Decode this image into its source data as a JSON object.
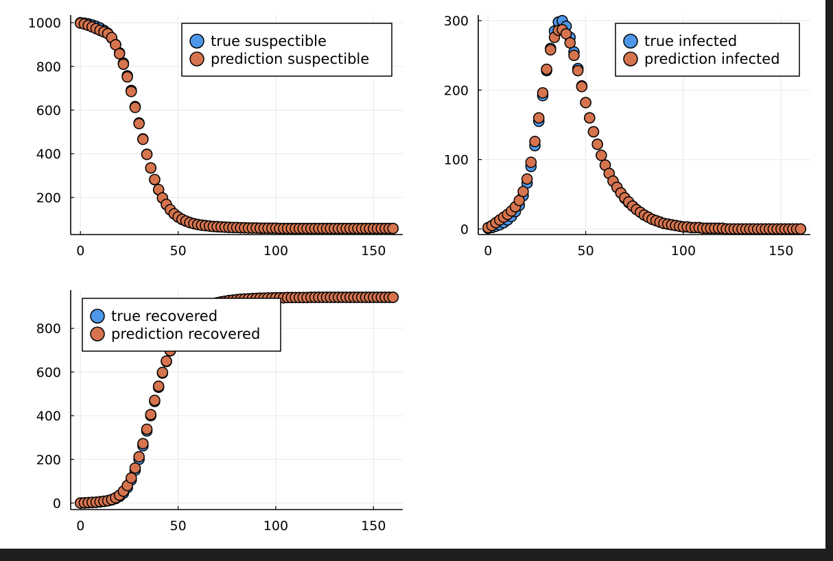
{
  "figure": {
    "background": "#ffffff",
    "frame": "#1e1e1e"
  },
  "colors": {
    "true": "#4e97e8",
    "prediction": "#d5744e",
    "marker_edge": "#000000",
    "grid": "#e8e8e8",
    "axis": "#000000"
  },
  "chart_data": [
    {
      "type": "scatter",
      "subplot": "susceptible",
      "title": "",
      "xlabel": "",
      "ylabel": "",
      "xlim": [
        -5,
        165
      ],
      "ylim": [
        30,
        1035
      ],
      "xticks": [
        0,
        50,
        100,
        150
      ],
      "yticks": [
        200,
        400,
        600,
        800,
        1000
      ],
      "grid": true,
      "legend_position": "top-right",
      "x": [
        0,
        2,
        4,
        6,
        8,
        10,
        12,
        14,
        16,
        18,
        20,
        22,
        24,
        26,
        28,
        30,
        32,
        34,
        36,
        38,
        40,
        42,
        44,
        46,
        48,
        50,
        52,
        54,
        56,
        58,
        60,
        62,
        64,
        66,
        68,
        70,
        72,
        74,
        76,
        78,
        80,
        82,
        84,
        86,
        88,
        90,
        92,
        94,
        96,
        98,
        100,
        102,
        104,
        106,
        108,
        110,
        112,
        114,
        116,
        118,
        120,
        122,
        124,
        126,
        128,
        130,
        132,
        134,
        136,
        138,
        140,
        142,
        144,
        146,
        148,
        150,
        152,
        154,
        156,
        158,
        160
      ],
      "series": [
        {
          "name": "true suspectible",
          "role": "true",
          "values": [
            1000,
            998,
            995,
            990,
            984,
            976,
            965,
            952,
            930,
            900,
            862,
            815,
            757,
            690,
            616,
            541,
            468,
            398,
            335,
            281,
            235,
            197,
            167,
            143,
            124,
            110,
            99,
            91,
            85,
            80,
            76,
            73,
            71,
            69,
            67,
            66,
            65,
            64,
            63,
            62,
            62,
            61,
            61,
            60,
            60,
            60,
            59,
            59,
            59,
            59,
            59,
            58,
            58,
            58,
            58,
            58,
            58,
            58,
            58,
            58,
            58,
            58,
            58,
            58,
            58,
            58,
            58,
            58,
            58,
            58,
            58,
            58,
            58,
            58,
            58,
            58,
            58,
            58,
            58,
            58,
            58
          ]
        },
        {
          "name": "prediction suspectible",
          "role": "prediction",
          "values": [
            998,
            994,
            988,
            981,
            973,
            965,
            958,
            950,
            932,
            899,
            858,
            810,
            752,
            685,
            612,
            538,
            466,
            397,
            335,
            282,
            236,
            198,
            168,
            144,
            125,
            111,
            100,
            92,
            85,
            80,
            76,
            73,
            71,
            69,
            67,
            66,
            65,
            64,
            63,
            62,
            62,
            61,
            61,
            60,
            60,
            60,
            59,
            59,
            59,
            59,
            59,
            58,
            58,
            58,
            58,
            58,
            58,
            58,
            58,
            58,
            58,
            58,
            58,
            58,
            58,
            58,
            58,
            58,
            58,
            58,
            58,
            58,
            58,
            58,
            58,
            58,
            58,
            58,
            58,
            58,
            58
          ]
        }
      ]
    },
    {
      "type": "scatter",
      "subplot": "infected",
      "title": "",
      "xlabel": "",
      "ylabel": "",
      "xlim": [
        -5,
        165
      ],
      "ylim": [
        -8,
        308
      ],
      "xticks": [
        0,
        50,
        100,
        150
      ],
      "yticks": [
        0,
        100,
        200,
        300
      ],
      "grid": true,
      "legend_position": "top-right",
      "x": [
        0,
        2,
        4,
        6,
        8,
        10,
        12,
        14,
        16,
        18,
        20,
        22,
        24,
        26,
        28,
        30,
        32,
        34,
        36,
        38,
        40,
        42,
        44,
        46,
        48,
        50,
        52,
        54,
        56,
        58,
        60,
        62,
        64,
        66,
        68,
        70,
        72,
        74,
        76,
        78,
        80,
        82,
        84,
        86,
        88,
        90,
        92,
        94,
        96,
        98,
        100,
        102,
        104,
        106,
        108,
        110,
        112,
        114,
        116,
        118,
        120,
        122,
        124,
        126,
        128,
        130,
        132,
        134,
        136,
        138,
        140,
        142,
        144,
        146,
        148,
        150,
        152,
        154,
        156,
        158,
        160
      ],
      "series": [
        {
          "name": "true infected",
          "role": "true",
          "values": [
            1,
            2,
            4,
            6,
            9,
            13,
            18,
            25,
            34,
            48,
            66,
            90,
            120,
            155,
            192,
            228,
            260,
            285,
            298,
            300,
            292,
            276,
            255,
            231,
            206,
            182,
            160,
            140,
            122,
            106,
            92,
            80,
            69,
            60,
            52,
            44,
            38,
            33,
            28,
            24,
            20,
            17,
            14,
            12,
            10,
            8,
            7,
            6,
            5,
            4,
            3,
            3,
            2,
            2,
            2,
            1,
            1,
            1,
            1,
            1,
            1,
            0,
            0,
            0,
            0,
            0,
            0,
            0,
            0,
            0,
            0,
            0,
            0,
            0,
            0,
            0,
            0,
            0,
            0,
            0,
            0
          ]
        },
        {
          "name": "prediction infected",
          "role": "prediction",
          "values": [
            2,
            5,
            9,
            13,
            17,
            21,
            26,
            32,
            41,
            54,
            72,
            96,
            126,
            160,
            196,
            230,
            258,
            276,
            286,
            287,
            281,
            268,
            250,
            228,
            205,
            182,
            160,
            140,
            122,
            106,
            92,
            80,
            69,
            60,
            52,
            45,
            39,
            33,
            28,
            24,
            20,
            17,
            14,
            12,
            10,
            8,
            7,
            6,
            5,
            4,
            3,
            3,
            2,
            2,
            2,
            1,
            1,
            1,
            1,
            1,
            1,
            0,
            0,
            0,
            0,
            0,
            0,
            0,
            0,
            0,
            0,
            0,
            0,
            0,
            0,
            0,
            0,
            0,
            0,
            0,
            0
          ]
        }
      ]
    },
    {
      "type": "scatter",
      "subplot": "recovered",
      "title": "",
      "xlabel": "",
      "ylabel": "",
      "xlim": [
        -5,
        165
      ],
      "ylim": [
        -30,
        975
      ],
      "xticks": [
        0,
        50,
        100,
        150
      ],
      "yticks": [
        0,
        200,
        400,
        600,
        800
      ],
      "grid": true,
      "legend_position": "top-left",
      "x": [
        0,
        2,
        4,
        6,
        8,
        10,
        12,
        14,
        16,
        18,
        20,
        22,
        24,
        26,
        28,
        30,
        32,
        34,
        36,
        38,
        40,
        42,
        44,
        46,
        48,
        50,
        52,
        54,
        56,
        58,
        60,
        62,
        64,
        66,
        68,
        70,
        72,
        74,
        76,
        78,
        80,
        82,
        84,
        86,
        88,
        90,
        92,
        94,
        96,
        98,
        100,
        102,
        104,
        106,
        108,
        110,
        112,
        114,
        116,
        118,
        120,
        122,
        124,
        126,
        128,
        130,
        132,
        134,
        136,
        138,
        140,
        142,
        144,
        146,
        148,
        150,
        152,
        154,
        156,
        158,
        160
      ],
      "series": [
        {
          "name": "true recovered",
          "role": "true",
          "values": [
            0,
            0,
            1,
            2,
            3,
            5,
            7,
            10,
            14,
            20,
            30,
            45,
            70,
            105,
            150,
            200,
            262,
            330,
            400,
            465,
            530,
            595,
            648,
            697,
            740,
            775,
            805,
            830,
            850,
            866,
            879,
            890,
            899,
            906,
            912,
            917,
            921,
            924,
            927,
            929,
            931,
            933,
            934,
            935,
            936,
            937,
            938,
            938,
            939,
            939,
            940,
            940,
            940,
            941,
            941,
            941,
            941,
            941,
            941,
            942,
            942,
            942,
            942,
            942,
            942,
            942,
            942,
            942,
            942,
            942,
            942,
            942,
            942,
            942,
            942,
            942,
            942,
            942,
            942,
            942,
            942
          ]
        },
        {
          "name": "prediction recovered",
          "role": "prediction",
          "values": [
            0,
            1,
            2,
            3,
            4,
            6,
            8,
            11,
            16,
            24,
            36,
            54,
            80,
            115,
            160,
            212,
            272,
            338,
            405,
            470,
            535,
            598,
            650,
            698,
            740,
            775,
            805,
            830,
            850,
            866,
            879,
            890,
            899,
            906,
            912,
            917,
            921,
            924,
            927,
            929,
            931,
            933,
            934,
            935,
            936,
            937,
            938,
            938,
            939,
            939,
            940,
            940,
            940,
            941,
            941,
            941,
            941,
            941,
            941,
            942,
            942,
            942,
            942,
            942,
            942,
            942,
            942,
            942,
            942,
            942,
            942,
            942,
            942,
            942,
            942,
            942,
            942,
            942,
            942,
            942,
            942
          ]
        }
      ]
    }
  ]
}
